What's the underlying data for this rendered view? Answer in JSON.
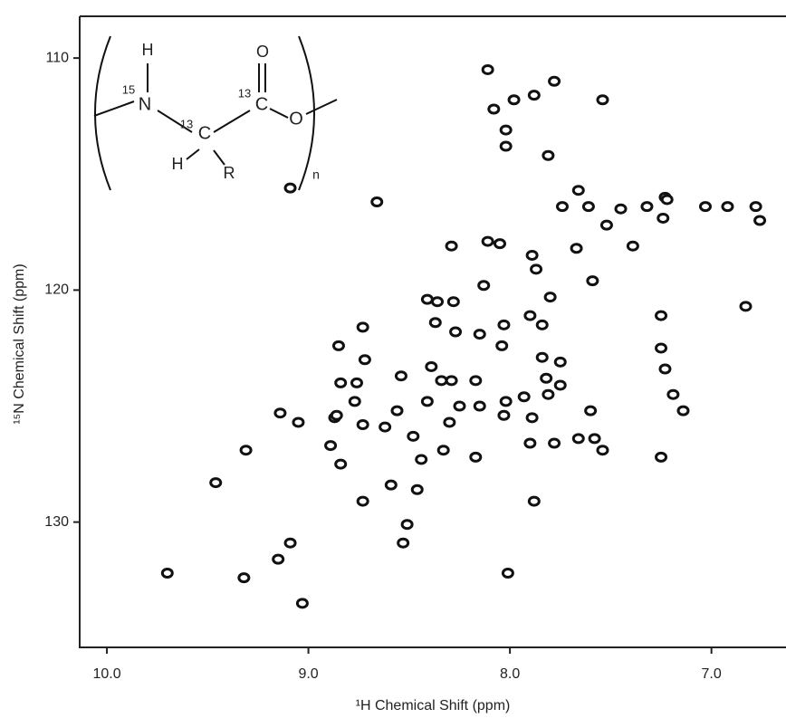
{
  "chart_data": {
    "type": "scatter",
    "xlabel": "¹H Chemical Shift (ppm)",
    "ylabel": "¹⁵N Chemical Shift (ppm)",
    "annotations": [
      "H",
      "15",
      "N",
      "13",
      "C",
      "H",
      "R",
      "13",
      "C",
      "O",
      "O",
      "n"
    ],
    "xlim": [
      10.135,
      6.63
    ],
    "ylim": [
      108.2,
      135.4
    ],
    "xticks": [
      {
        "value": 10,
        "label": "10.0"
      },
      {
        "value": 9,
        "label": "9.0"
      },
      {
        "value": 8,
        "label": "8.0"
      },
      {
        "value": 7,
        "label": "7.0"
      }
    ],
    "yticks": [
      110,
      120,
      130
    ],
    "series": [
      {
        "color": "#111111",
        "x": [
          8.11,
          8.08,
          7.98,
          7.88,
          7.78,
          7.54,
          8.02,
          8.02,
          7.81,
          8.66,
          9.09,
          8.29,
          8.11,
          8.05,
          8.13,
          7.89,
          7.87,
          7.8,
          7.66,
          7.74,
          7.61,
          7.67,
          7.59,
          7.52,
          7.45,
          7.23,
          7.24,
          7.32,
          7.39,
          7.22,
          7.03,
          6.92,
          6.78,
          6.76,
          6.83,
          7.25,
          7.25,
          7.23,
          7.19,
          7.14,
          7.25,
          8.41,
          8.36,
          8.28,
          8.37,
          8.27,
          8.15,
          8.03,
          8.04,
          7.9,
          7.84,
          7.84,
          7.82,
          7.75,
          7.75,
          7.81,
          7.93,
          8.02,
          8.03,
          8.15,
          8.17,
          8.29,
          8.39,
          8.34,
          8.41,
          8.54,
          8.56,
          8.62,
          8.48,
          8.44,
          8.33,
          8.17,
          8.3,
          8.25,
          7.89,
          7.78,
          7.9,
          7.66,
          7.6,
          7.58,
          7.54,
          8.85,
          8.84,
          8.77,
          8.87,
          8.89,
          8.84,
          8.73,
          8.76,
          8.72,
          8.73,
          8.86,
          9.05,
          9.14,
          9.31,
          9.46,
          9.7,
          9.32,
          9.15,
          9.09,
          9.03,
          8.53,
          8.51,
          8.46,
          8.59,
          8.73,
          7.88,
          8.01
        ],
        "values": [
          110.5,
          112.2,
          111.8,
          111.6,
          111.0,
          111.8,
          113.1,
          113.8,
          114.2,
          116.2,
          115.6,
          118.1,
          117.9,
          118.0,
          119.8,
          118.5,
          119.1,
          120.3,
          115.7,
          116.4,
          116.4,
          118.2,
          119.6,
          117.2,
          116.5,
          116.0,
          116.9,
          116.4,
          118.1,
          116.1,
          116.4,
          116.4,
          116.4,
          117.0,
          120.7,
          121.1,
          122.5,
          123.4,
          124.5,
          125.2,
          127.2,
          120.4,
          120.5,
          120.5,
          121.4,
          121.8,
          121.9,
          121.5,
          122.4,
          121.1,
          121.5,
          122.9,
          123.8,
          123.1,
          124.1,
          124.5,
          124.6,
          124.8,
          125.4,
          125.0,
          123.9,
          123.9,
          123.3,
          123.9,
          124.8,
          123.7,
          125.2,
          125.9,
          126.3,
          127.3,
          126.9,
          127.2,
          125.7,
          125.0,
          125.5,
          126.6,
          126.6,
          126.4,
          125.2,
          126.4,
          126.9,
          122.4,
          124.0,
          124.8,
          125.5,
          126.7,
          127.5,
          125.8,
          124.0,
          123.0,
          121.6,
          125.4,
          125.7,
          125.3,
          126.9,
          128.3,
          132.2,
          132.4,
          131.6,
          130.9,
          133.5,
          130.9,
          130.1,
          128.6,
          128.4,
          129.1,
          129.1,
          132.2
        ]
      }
    ]
  }
}
